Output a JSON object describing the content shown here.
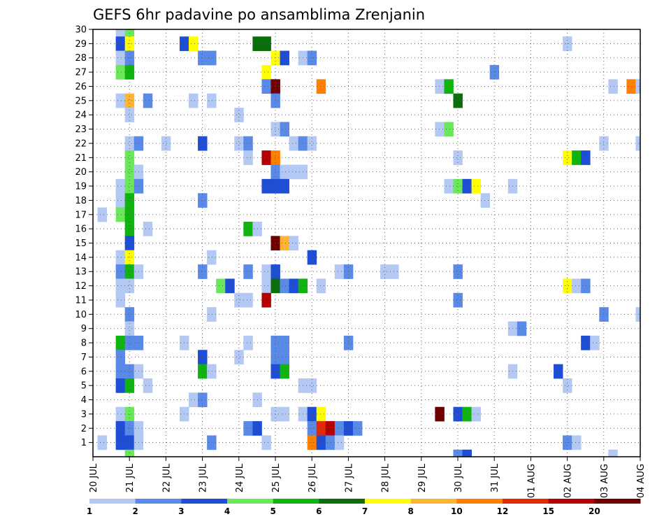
{
  "chart_data": {
    "type": "heatmap",
    "title": "GEFS 6hr padavine po ansamblima Zrenjanin",
    "x_tick_labels": [
      "20 JUL",
      "21 JUL",
      "22 JUL",
      "23 JUL",
      "24 JUL",
      "25 JUL",
      "26 JUL",
      "27 JUL",
      "28 JUL",
      "29 JUL",
      "30 JUL",
      "31 JUL",
      "01 AUG",
      "02 AUG",
      "03 AUG",
      "04 AUG"
    ],
    "x_unit": "6-hour steps from 20 JUL 00",
    "x_range": [
      0,
      60
    ],
    "y_range": [
      0,
      30
    ],
    "y_tick_labels": [
      "1",
      "2",
      "3",
      "4",
      "5",
      "6",
      "7",
      "8",
      "9",
      "10",
      "11",
      "12",
      "13",
      "14",
      "15",
      "16",
      "17",
      "18",
      "19",
      "20",
      "21",
      "22",
      "23",
      "24",
      "25",
      "26",
      "27",
      "28",
      "29",
      "30"
    ],
    "grid": true,
    "colorbar": {
      "labels": [
        "1",
        "2",
        "3",
        "4",
        "5",
        "6",
        "7",
        "8",
        "10",
        "12",
        "15",
        "20"
      ],
      "colors": [
        "#b4c8f4",
        "#5a8ae8",
        "#1e4ed6",
        "#6ae85a",
        "#10b410",
        "#0a6e0a",
        "#ffff00",
        "#ffb432",
        "#ff8000",
        "#e62800",
        "#b40000",
        "#6e0000"
      ],
      "placement": "bottom"
    },
    "cells": [
      [
        3,
        30,
        1
      ],
      [
        3,
        29,
        3
      ],
      [
        3,
        28,
        1
      ],
      [
        3,
        27,
        4
      ],
      [
        3,
        25,
        1
      ],
      [
        3,
        19,
        1
      ],
      [
        3,
        18,
        1
      ],
      [
        3,
        17,
        4
      ],
      [
        3,
        14,
        1
      ],
      [
        3,
        13,
        2
      ],
      [
        3,
        12,
        1
      ],
      [
        3,
        11,
        1
      ],
      [
        3,
        8,
        5
      ],
      [
        3,
        7,
        2
      ],
      [
        3,
        6,
        2
      ],
      [
        3,
        5,
        3
      ],
      [
        3,
        3,
        1
      ],
      [
        3,
        2,
        3
      ],
      [
        3,
        1,
        3
      ],
      [
        4,
        30,
        4
      ],
      [
        4,
        29,
        7
      ],
      [
        4,
        28,
        2
      ],
      [
        4,
        27,
        5
      ],
      [
        4,
        25,
        8
      ],
      [
        4,
        24,
        1
      ],
      [
        4,
        22,
        1
      ],
      [
        4,
        21,
        4
      ],
      [
        4,
        20,
        4
      ],
      [
        4,
        19,
        4
      ],
      [
        4,
        18,
        5
      ],
      [
        4,
        17,
        5
      ],
      [
        4,
        16,
        5
      ],
      [
        4,
        15,
        3
      ],
      [
        4,
        14,
        7
      ],
      [
        4,
        13,
        5
      ],
      [
        4,
        12,
        1
      ],
      [
        4,
        10,
        2
      ],
      [
        4,
        9,
        1
      ],
      [
        4,
        8,
        2
      ],
      [
        4,
        6,
        2
      ],
      [
        4,
        5,
        5
      ],
      [
        4,
        3,
        4
      ],
      [
        4,
        2,
        2
      ],
      [
        4,
        1,
        3
      ],
      [
        4,
        0,
        4
      ],
      [
        5,
        22,
        2
      ],
      [
        5,
        20,
        1
      ],
      [
        5,
        19,
        2
      ],
      [
        5,
        13,
        1
      ],
      [
        5,
        8,
        2
      ],
      [
        5,
        6,
        1
      ],
      [
        5,
        2,
        1
      ],
      [
        5,
        1,
        1
      ],
      [
        1,
        1,
        1
      ],
      [
        1,
        17,
        1
      ],
      [
        6,
        16,
        1
      ],
      [
        6,
        5,
        1
      ],
      [
        6,
        25,
        2
      ],
      [
        8,
        22,
        1
      ],
      [
        10,
        29,
        3
      ],
      [
        10,
        3,
        1
      ],
      [
        10,
        8,
        1
      ],
      [
        11,
        29,
        7
      ],
      [
        11,
        25,
        1
      ],
      [
        11,
        4,
        1
      ],
      [
        12,
        28,
        2
      ],
      [
        12,
        22,
        3
      ],
      [
        12,
        18,
        2
      ],
      [
        12,
        13,
        2
      ],
      [
        12,
        7,
        3
      ],
      [
        12,
        6,
        5
      ],
      [
        12,
        4,
        2
      ],
      [
        13,
        28,
        2
      ],
      [
        13,
        14,
        1
      ],
      [
        13,
        10,
        1
      ],
      [
        13,
        6,
        1
      ],
      [
        13,
        1,
        2
      ],
      [
        13,
        25,
        1
      ],
      [
        14,
        12,
        4
      ],
      [
        15,
        12,
        3
      ],
      [
        16,
        24,
        1
      ],
      [
        16,
        22,
        1
      ],
      [
        16,
        7,
        1
      ],
      [
        16,
        11,
        1
      ],
      [
        17,
        22,
        2
      ],
      [
        17,
        21,
        1
      ],
      [
        17,
        16,
        5
      ],
      [
        17,
        13,
        2
      ],
      [
        17,
        11,
        1
      ],
      [
        17,
        8,
        1
      ],
      [
        17,
        2,
        2
      ],
      [
        18,
        29,
        6
      ],
      [
        18,
        4,
        1
      ],
      [
        18,
        16,
        1
      ],
      [
        18,
        2,
        3
      ],
      [
        19,
        29,
        6
      ],
      [
        19,
        27,
        7
      ],
      [
        19,
        26,
        2
      ],
      [
        19,
        21,
        11
      ],
      [
        19,
        19,
        3
      ],
      [
        19,
        13,
        1
      ],
      [
        19,
        12,
        1
      ],
      [
        19,
        11,
        11
      ],
      [
        19,
        1,
        1
      ],
      [
        20,
        28,
        7
      ],
      [
        20,
        26,
        12
      ],
      [
        20,
        25,
        2
      ],
      [
        20,
        23,
        1
      ],
      [
        20,
        21,
        9
      ],
      [
        20,
        20,
        2
      ],
      [
        20,
        19,
        3
      ],
      [
        20,
        15,
        12
      ],
      [
        20,
        13,
        3
      ],
      [
        20,
        12,
        6
      ],
      [
        20,
        8,
        2
      ],
      [
        20,
        7,
        2
      ],
      [
        20,
        6,
        3
      ],
      [
        20,
        3,
        1
      ],
      [
        21,
        28,
        3
      ],
      [
        21,
        23,
        2
      ],
      [
        21,
        20,
        1
      ],
      [
        21,
        19,
        3
      ],
      [
        21,
        15,
        8
      ],
      [
        21,
        12,
        2
      ],
      [
        21,
        8,
        2
      ],
      [
        21,
        7,
        2
      ],
      [
        21,
        6,
        5
      ],
      [
        21,
        3,
        1
      ],
      [
        22,
        22,
        1
      ],
      [
        22,
        20,
        1
      ],
      [
        22,
        15,
        1
      ],
      [
        22,
        12,
        3
      ],
      [
        23,
        28,
        1
      ],
      [
        23,
        22,
        2
      ],
      [
        23,
        20,
        1
      ],
      [
        23,
        12,
        5
      ],
      [
        23,
        5,
        1
      ],
      [
        23,
        3,
        1
      ],
      [
        24,
        28,
        2
      ],
      [
        24,
        22,
        1
      ],
      [
        24,
        14,
        3
      ],
      [
        24,
        5,
        1
      ],
      [
        24,
        3,
        3
      ],
      [
        24,
        2,
        2
      ],
      [
        24,
        1,
        9
      ],
      [
        25,
        26,
        9
      ],
      [
        25,
        12,
        1
      ],
      [
        25,
        3,
        7
      ],
      [
        25,
        2,
        10
      ],
      [
        25,
        1,
        3
      ],
      [
        26,
        2,
        11
      ],
      [
        26,
        1,
        2
      ],
      [
        27,
        13,
        1
      ],
      [
        27,
        2,
        2
      ],
      [
        27,
        1,
        1
      ],
      [
        28,
        13,
        2
      ],
      [
        28,
        8,
        2
      ],
      [
        28,
        2,
        3
      ],
      [
        29,
        2,
        2
      ],
      [
        32,
        13,
        1
      ],
      [
        33,
        13,
        1
      ],
      [
        38,
        26,
        1
      ],
      [
        38,
        23,
        1
      ],
      [
        38,
        3,
        12
      ],
      [
        39,
        26,
        5
      ],
      [
        39,
        23,
        4
      ],
      [
        39,
        19,
        1
      ],
      [
        40,
        25,
        6
      ],
      [
        40,
        21,
        1
      ],
      [
        40,
        19,
        4
      ],
      [
        40,
        13,
        2
      ],
      [
        40,
        11,
        2
      ],
      [
        40,
        3,
        3
      ],
      [
        40,
        0,
        2
      ],
      [
        41,
        19,
        3
      ],
      [
        41,
        3,
        5
      ],
      [
        41,
        0,
        3
      ],
      [
        42,
        19,
        7
      ],
      [
        42,
        3,
        1
      ],
      [
        43,
        18,
        1
      ],
      [
        44,
        27,
        2
      ],
      [
        46,
        19,
        1
      ],
      [
        46,
        9,
        1
      ],
      [
        46,
        6,
        1
      ],
      [
        47,
        9,
        2
      ],
      [
        51,
        6,
        3
      ],
      [
        52,
        29,
        1
      ],
      [
        52,
        21,
        7
      ],
      [
        52,
        12,
        7
      ],
      [
        52,
        5,
        1
      ],
      [
        52,
        1,
        2
      ],
      [
        53,
        21,
        5
      ],
      [
        53,
        12,
        1
      ],
      [
        53,
        1,
        1
      ],
      [
        54,
        21,
        3
      ],
      [
        54,
        12,
        2
      ],
      [
        54,
        8,
        3
      ],
      [
        55,
        8,
        1
      ],
      [
        56,
        22,
        1
      ],
      [
        56,
        10,
        2
      ],
      [
        57,
        26,
        1
      ],
      [
        57,
        0,
        1
      ],
      [
        59,
        26,
        9
      ],
      [
        60,
        26,
        1
      ],
      [
        60,
        22,
        1
      ],
      [
        60,
        10,
        1
      ]
    ]
  }
}
